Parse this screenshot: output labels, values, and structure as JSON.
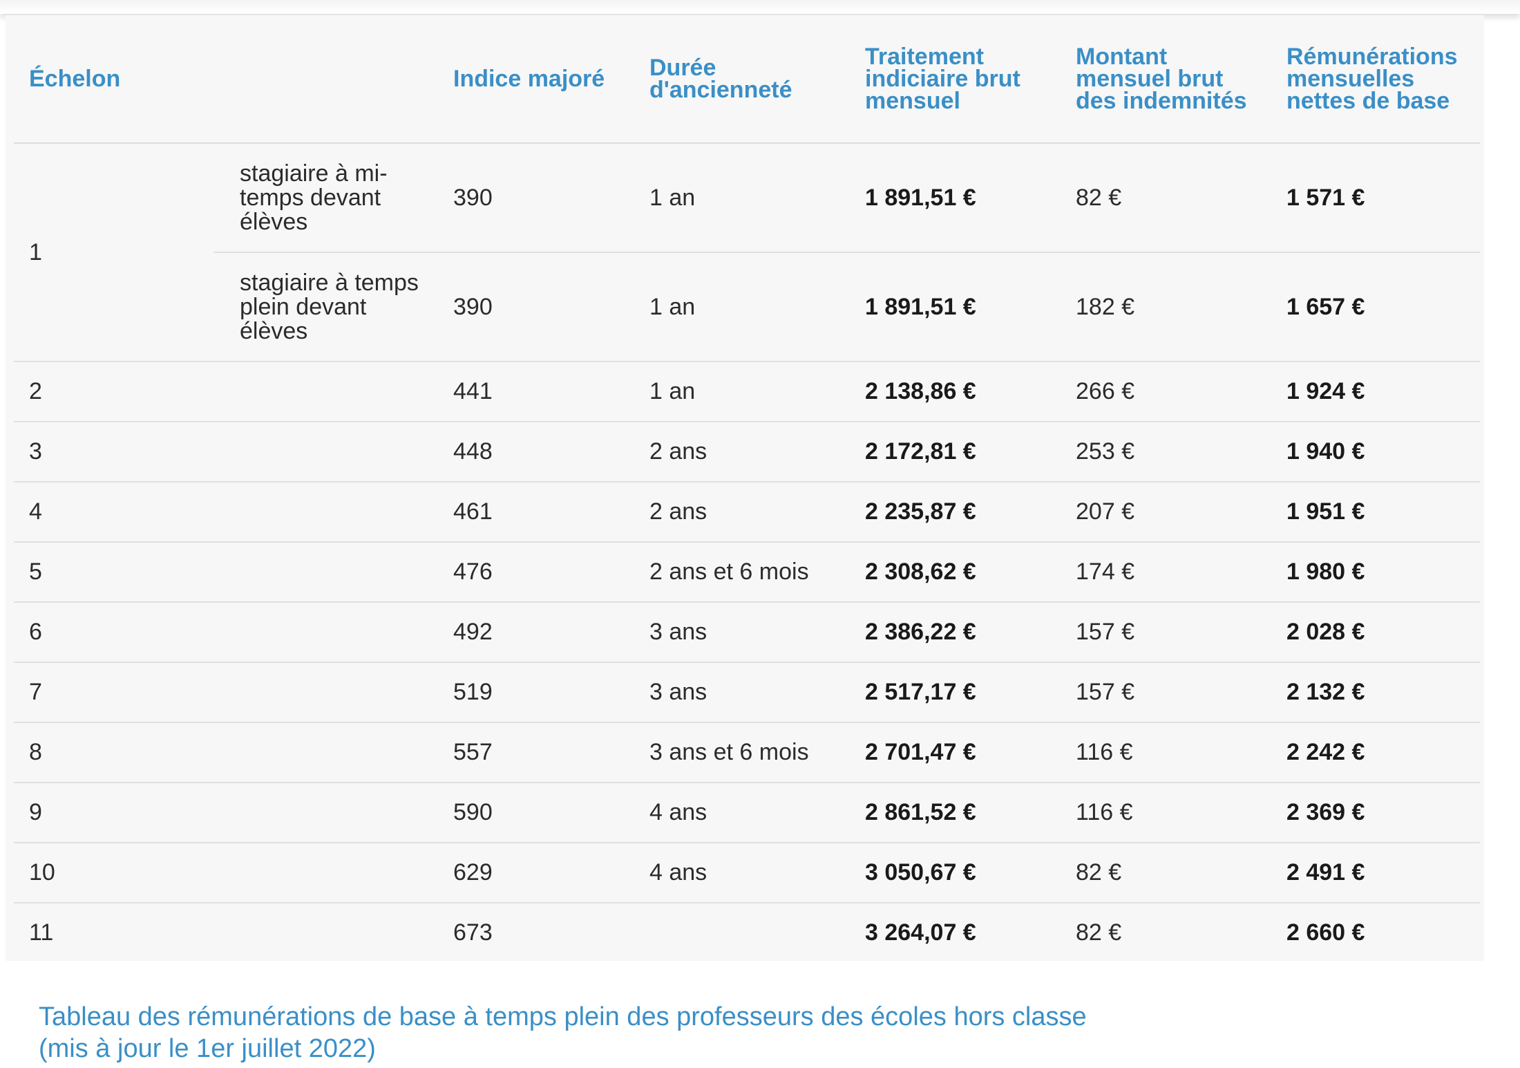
{
  "headers": {
    "echelon": "Échelon",
    "sub": "",
    "indice": "Indice majoré",
    "duree": "Durée d'ancienneté",
    "traitement": "Traitement indiciaire brut mensuel",
    "montant": "Montant mensuel brut des indemnités",
    "remuneration": "Rémunérations mensuelles nettes de base"
  },
  "rows": [
    {
      "echelon": "1",
      "sub": "stagiaire à mi-temps devant élèves",
      "indice": "390",
      "duree": "1 an",
      "traitement": "1 891,51 €",
      "montant": "82 €",
      "remuneration": "1 571 €"
    },
    {
      "echelon": "",
      "sub": "stagiaire à temps plein devant élèves",
      "indice": "390",
      "duree": "1 an",
      "traitement": "1 891,51 €",
      "montant": "182 €",
      "remuneration": "1 657 €"
    },
    {
      "echelon": "2",
      "sub": "",
      "indice": "441",
      "duree": "1 an",
      "traitement": "2 138,86 €",
      "montant": "266 €",
      "remuneration": "1 924 €"
    },
    {
      "echelon": "3",
      "sub": "",
      "indice": "448",
      "duree": "2 ans",
      "traitement": "2 172,81 €",
      "montant": "253 €",
      "remuneration": "1 940 €"
    },
    {
      "echelon": "4",
      "sub": "",
      "indice": "461",
      "duree": "2 ans",
      "traitement": "2 235,87 €",
      "montant": "207 €",
      "remuneration": "1 951 €"
    },
    {
      "echelon": "5",
      "sub": "",
      "indice": "476",
      "duree": "2 ans et 6 mois",
      "traitement": "2 308,62 €",
      "montant": "174 €",
      "remuneration": "1 980 €"
    },
    {
      "echelon": "6",
      "sub": "",
      "indice": "492",
      "duree": "3 ans",
      "traitement": "2 386,22 €",
      "montant": "157 €",
      "remuneration": "2 028 €"
    },
    {
      "echelon": "7",
      "sub": "",
      "indice": "519",
      "duree": "3 ans",
      "traitement": "2 517,17 €",
      "montant": "157 €",
      "remuneration": "2 132 €"
    },
    {
      "echelon": "8",
      "sub": "",
      "indice": "557",
      "duree": "3 ans et 6 mois",
      "traitement": "2 701,47 €",
      "montant": "116 €",
      "remuneration": "2 242 €"
    },
    {
      "echelon": "9",
      "sub": "",
      "indice": "590",
      "duree": "4 ans",
      "traitement": "2 861,52 €",
      "montant": "116 €",
      "remuneration": "2 369 €"
    },
    {
      "echelon": "10",
      "sub": "",
      "indice": "629",
      "duree": "4 ans",
      "traitement": "3 050,67 €",
      "montant": "82 €",
      "remuneration": "2 491 €"
    },
    {
      "echelon": "11",
      "sub": "",
      "indice": "673",
      "duree": "",
      "traitement": "3 264,07 €",
      "montant": "82 €",
      "remuneration": "2 660 €"
    }
  ],
  "caption": {
    "line1": "Tableau des rémunérations de base à temps plein des professeurs des écoles hors classe",
    "line2": "(mis à jour le 1er juillet 2022)"
  },
  "colors": {
    "accent": "#3a8fc7",
    "panel": "#f7f7f7",
    "text": "#2b2b2b"
  }
}
